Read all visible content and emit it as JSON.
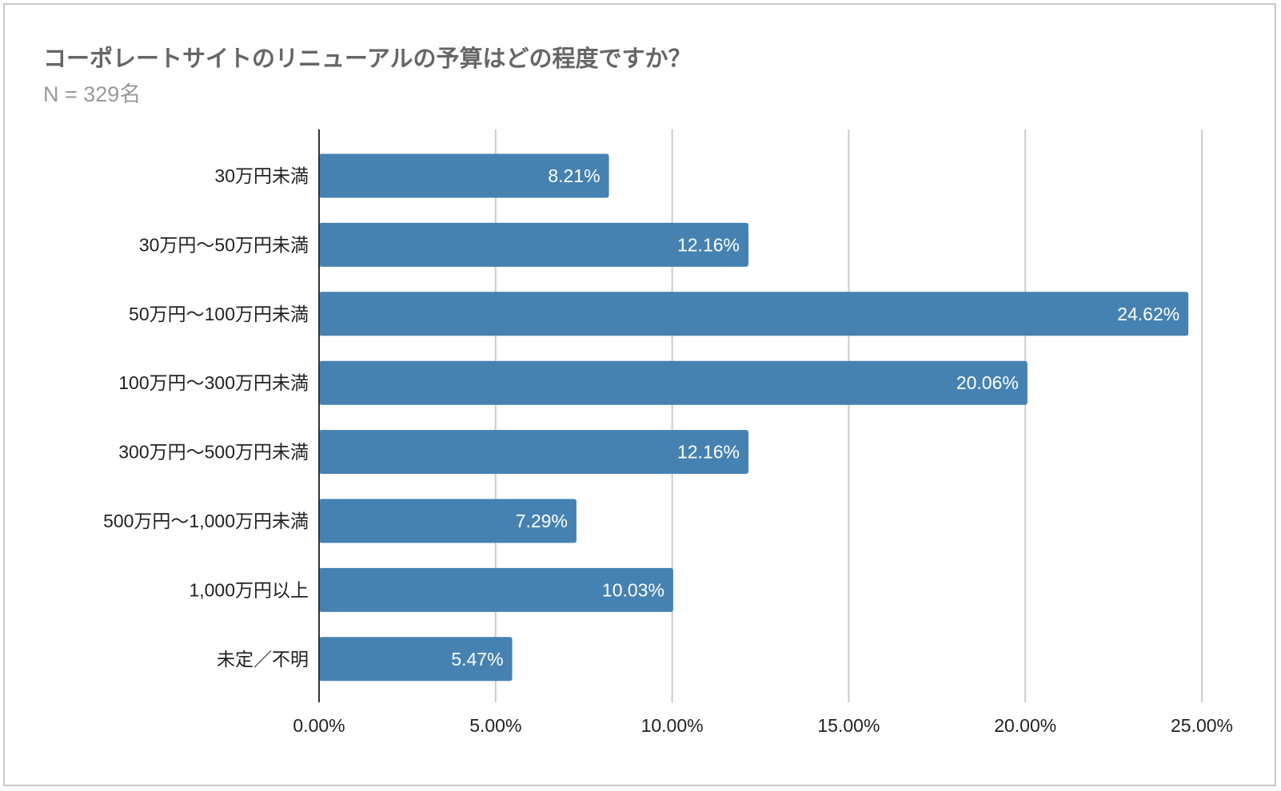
{
  "title": "コーポレートサイトのリニューアルの予算はどの程度ですか？",
  "subtitle": "N = 329名",
  "chart_data": {
    "type": "bar",
    "orientation": "horizontal",
    "categories": [
      "30万円未満",
      "30万円〜50万円未満",
      "50万円〜100万円未満",
      "100万円〜300万円未満",
      "300万円〜500万円未満",
      "500万円〜1,000万円未満",
      "1,000万円以上",
      "未定／不明"
    ],
    "values": [
      8.21,
      12.16,
      24.62,
      20.06,
      12.16,
      7.29,
      10.03,
      5.47
    ],
    "data_labels": [
      "8.21%",
      "12.16%",
      "24.62%",
      "20.06%",
      "12.16%",
      "7.29%",
      "10.03%",
      "5.47%"
    ],
    "xlim": [
      0,
      25
    ],
    "x_ticks": [
      "0.00%",
      "5.00%",
      "10.00%",
      "15.00%",
      "20.00%",
      "25.00%"
    ],
    "grid": "vertical",
    "bar_color": "#4682b1"
  }
}
